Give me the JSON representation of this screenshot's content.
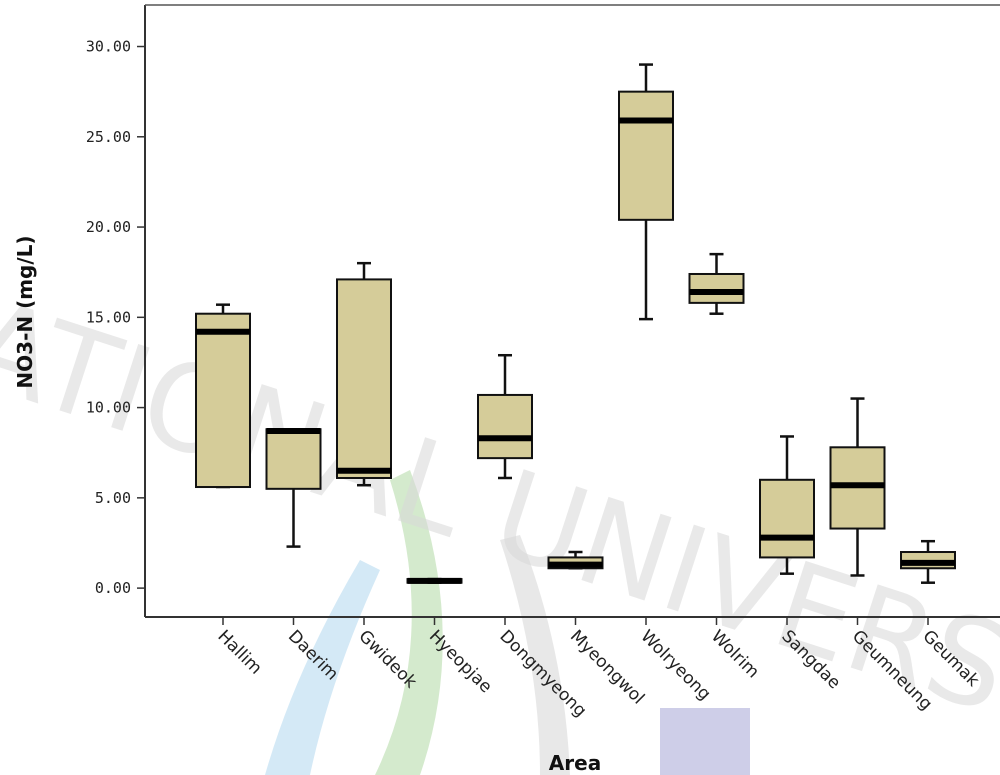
{
  "chart_data": {
    "type": "box",
    "xlabel": "Area",
    "ylabel": "NO3-N (mg/L)",
    "ylim": [
      -1.6,
      32.3
    ],
    "yticks": [
      "0.00",
      "5.00",
      "10.00",
      "15.00",
      "20.00",
      "25.00",
      "30.00"
    ],
    "categories": [
      "Hallim",
      "Daerim",
      "Gwideok",
      "Hyeopjae",
      "Dongmyeong",
      "Myeongwol",
      "Wolryeong",
      "Wolrim",
      "Sangdae",
      "Geumneung",
      "Geumak"
    ],
    "boxes": [
      {
        "min": 5.6,
        "q1": 5.6,
        "median": 14.2,
        "q3": 15.2,
        "max": 15.7
      },
      {
        "min": 2.3,
        "q1": 5.5,
        "median": 8.7,
        "q3": 8.8,
        "max": 8.8
      },
      {
        "min": 5.7,
        "q1": 6.1,
        "median": 6.5,
        "q3": 17.1,
        "max": 18.0
      },
      {
        "min": 0.3,
        "q1": 0.3,
        "median": 0.4,
        "q3": 0.5,
        "max": 0.5
      },
      {
        "min": 6.1,
        "q1": 7.2,
        "median": 8.3,
        "q3": 10.7,
        "max": 12.9
      },
      {
        "min": 1.1,
        "q1": 1.1,
        "median": 1.3,
        "q3": 1.7,
        "max": 2.0
      },
      {
        "min": 14.9,
        "q1": 20.4,
        "median": 25.9,
        "q3": 27.5,
        "max": 29.0
      },
      {
        "min": 15.2,
        "q1": 15.8,
        "median": 16.4,
        "q3": 17.4,
        "max": 18.5
      },
      {
        "min": 0.8,
        "q1": 1.7,
        "median": 2.8,
        "q3": 6.0,
        "max": 8.4
      },
      {
        "min": 0.7,
        "q1": 3.3,
        "median": 5.7,
        "q3": 7.8,
        "max": 10.5
      },
      {
        "min": 0.3,
        "q1": 1.1,
        "median": 1.4,
        "q3": 2.0,
        "max": 2.6
      }
    ],
    "box_color": "#d5cc99",
    "grid": false,
    "legend": "none"
  },
  "watermark_text": "NATIONAL UNIVERSITY"
}
